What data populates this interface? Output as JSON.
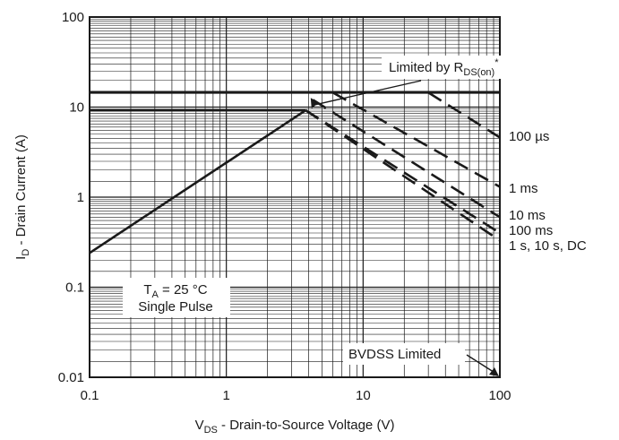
{
  "chart_data": {
    "type": "line",
    "title": "",
    "xlabel": {
      "main": "V",
      "sub": "DS",
      "rest": " - Drain-to-Source Voltage (V)"
    },
    "ylabel": {
      "main": "I",
      "sub": "D",
      "rest": " - Drain Current (A)"
    },
    "x_scale": "log",
    "y_scale": "log",
    "xlim": [
      0.1,
      100
    ],
    "ylim": [
      0.01,
      100
    ],
    "grid": true,
    "x_ticks": [
      "0.1",
      "1",
      "10",
      "100"
    ],
    "y_ticks": [
      "0.01",
      "0.1",
      "1",
      "10",
      "100"
    ],
    "x_tick_values": [
      0.1,
      1,
      10,
      100
    ],
    "y_tick_values": [
      0.01,
      0.1,
      1,
      10,
      100
    ],
    "series": [
      {
        "name": "",
        "style": "solid",
        "points": [
          [
            0.1,
            0.24
          ],
          [
            3.8,
            9.2
          ]
        ]
      },
      {
        "name": "",
        "style": "solid",
        "points": [
          [
            0.1,
            9.2
          ],
          [
            3.8,
            9.2
          ]
        ]
      },
      {
        "name": "",
        "style": "solid",
        "points": [
          [
            0.1,
            14.5
          ],
          [
            100,
            14.5
          ]
        ]
      },
      {
        "name": "100 µs",
        "style": "dashed",
        "points": [
          [
            30,
            14.5
          ],
          [
            100,
            4.6
          ]
        ]
      },
      {
        "name": "1 ms",
        "style": "dashed",
        "points": [
          [
            6,
            14.5
          ],
          [
            100,
            1.3
          ]
        ]
      },
      {
        "name": "10 ms",
        "style": "dashed",
        "points": [
          [
            4.3,
            12
          ],
          [
            100,
            0.6
          ]
        ]
      },
      {
        "name": "100 ms",
        "style": "dashed",
        "points": [
          [
            3.8,
            9.2
          ],
          [
            100,
            0.4
          ]
        ]
      },
      {
        "name": "1 s, 10 s, DC",
        "style": "dashed",
        "points": [
          [
            3.8,
            9.2
          ],
          [
            100,
            0.33
          ]
        ]
      }
    ],
    "curve_labels": [
      {
        "text": "100 µs",
        "x": 100,
        "y": 4.6
      },
      {
        "text": "1 ms",
        "x": 100,
        "y": 1.3
      },
      {
        "text": "10 ms",
        "x": 100,
        "y": 0.6
      },
      {
        "text": "100 ms",
        "x": 100,
        "y": 0.4
      },
      {
        "text": "1 s, 10 s, DC",
        "x": 100,
        "y": 0.3
      }
    ],
    "annotations": {
      "limited_rds": {
        "text": "Limited by R",
        "sub": "DS(on)",
        "sup": "*",
        "target": [
          4.2,
          9.6
        ]
      },
      "bvdss": {
        "text": "BVDSS Limited",
        "target": [
          100,
          0.01
        ]
      },
      "conditions": {
        "line1_main": "T",
        "line1_sub": "A",
        "line1_rest": " = 25 °C",
        "line2": "Single Pulse"
      }
    }
  }
}
